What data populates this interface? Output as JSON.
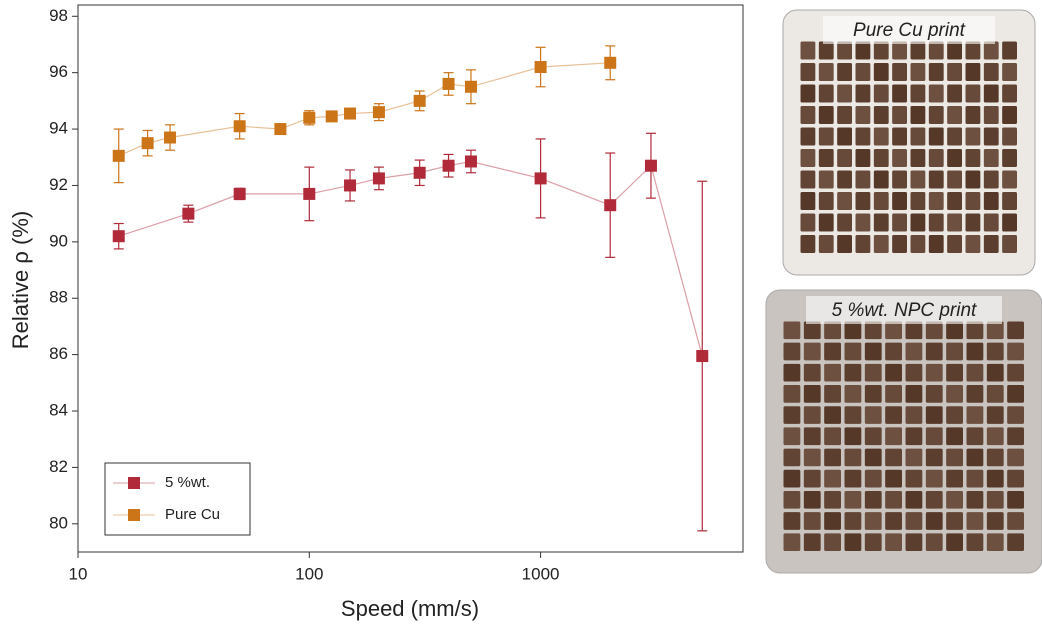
{
  "chart_data": {
    "type": "scatter",
    "x_label": "Speed (mm/s)",
    "y_label": "Relative ρ (%)",
    "xlim": [
      10,
      7500
    ],
    "ylim": [
      79,
      98.4
    ],
    "xscale": "log",
    "xticks": [
      10,
      100,
      1000
    ],
    "yticks": [
      80,
      82,
      84,
      86,
      88,
      90,
      92,
      94,
      96,
      98
    ],
    "legend": "lower left",
    "series": [
      {
        "name": "5 %wt.",
        "color": "#b02a3a",
        "x": [
          15,
          30,
          50,
          100,
          150,
          200,
          300,
          400,
          500,
          1000,
          2000,
          3000,
          5000
        ],
        "values": [
          90.2,
          91.0,
          91.7,
          91.7,
          92.0,
          92.25,
          92.45,
          92.7,
          92.85,
          92.25,
          91.3,
          92.7,
          85.95
        ],
        "errors": [
          0.45,
          0.3,
          0.2,
          0.95,
          0.55,
          0.4,
          0.45,
          0.4,
          0.4,
          1.4,
          1.85,
          1.15,
          6.2
        ]
      },
      {
        "name": "Pure Cu",
        "color": "#cc7418",
        "x": [
          15,
          20,
          25,
          50,
          75,
          100,
          125,
          150,
          200,
          300,
          400,
          500,
          1000,
          2000
        ],
        "values": [
          93.05,
          93.5,
          93.7,
          94.1,
          94.0,
          94.4,
          94.45,
          94.55,
          94.6,
          95.0,
          95.6,
          95.5,
          96.2,
          96.35
        ],
        "errors": [
          0.95,
          0.45,
          0.45,
          0.45,
          0.1,
          0.25,
          0.1,
          0.1,
          0.3,
          0.35,
          0.4,
          0.6,
          0.7,
          0.6
        ]
      }
    ]
  },
  "images": [
    {
      "caption": "Pure Cu print"
    },
    {
      "caption": "5 %wt. NPC print"
    }
  ]
}
